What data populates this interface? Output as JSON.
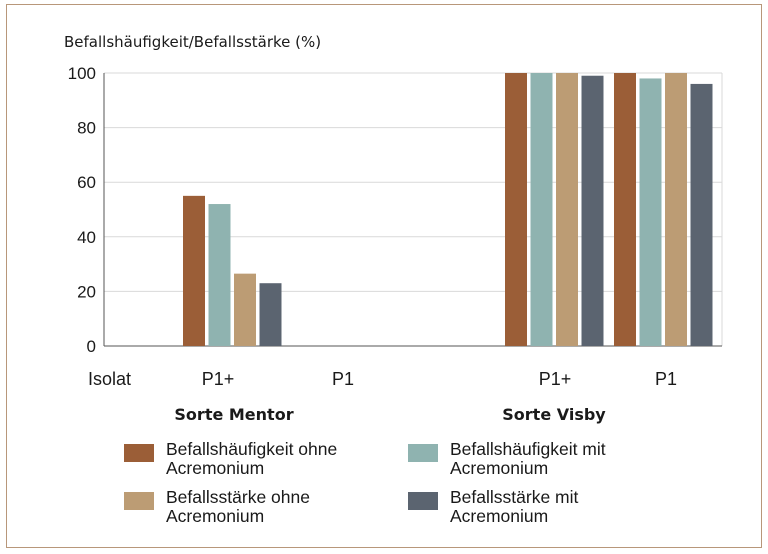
{
  "chart_data": {
    "type": "bar",
    "ylabel": "Befallshäufigkeit/Befallsstärke (%)",
    "ylim": [
      0,
      100
    ],
    "yticks": [
      0,
      20,
      40,
      60,
      80,
      100
    ],
    "grid": true,
    "x_axis_label": "Isolat",
    "categories": [
      "P1+",
      "P1",
      "P1+",
      "P1"
    ],
    "groups": [
      {
        "label": "Sorte Mentor",
        "categories": [
          "P1+",
          "P1"
        ]
      },
      {
        "label": "Sorte Visby",
        "categories": [
          "P1+",
          "P1"
        ]
      }
    ],
    "series": [
      {
        "name": "Befallshäufigkeit ohne Acremonium",
        "color": "#9b5e37",
        "values": [
          55,
          0,
          100,
          100
        ]
      },
      {
        "name": "Befallshäufigkeit mit Acremonium",
        "color": "#8fb3b0",
        "values": [
          52,
          0,
          100,
          98
        ]
      },
      {
        "name": "Befallsstärke ohne Acremonium",
        "color": "#bc9c74",
        "values": [
          26.5,
          0,
          100,
          100
        ]
      },
      {
        "name": "Befallsstärke mit Acremonium",
        "color": "#5b6470",
        "values": [
          23,
          0,
          99,
          96
        ]
      }
    ],
    "legend_position": "bottom"
  },
  "legend": [
    {
      "line1": "Befallshäufigkeit ohne",
      "line2": "Acremonium"
    },
    {
      "line1": "Befallshäufigkeit mit",
      "line2": "Acremonium"
    },
    {
      "line1": "Befallsstärke ohne",
      "line2": "Acremonium"
    },
    {
      "line1": "Befallsstärke mit",
      "line2": "Acremonium"
    }
  ],
  "colors": {
    "frame_border": "#b8977a",
    "grid": "#d9d9d9",
    "axis": "#555555"
  }
}
